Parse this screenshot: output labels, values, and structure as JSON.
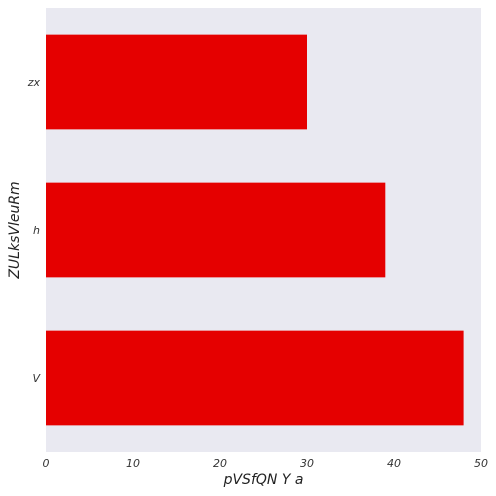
{
  "chart_data": {
    "type": "bar",
    "orientation": "horizontal",
    "categories": [
      "zx",
      "h",
      "V"
    ],
    "values": [
      30,
      39,
      48
    ],
    "xlabel": "pVSfQN Y a",
    "ylabel": "ZULksVleuRm",
    "xlim": [
      0,
      50
    ],
    "xticks": [
      0,
      10,
      20,
      30,
      40,
      50
    ],
    "grid": false,
    "legend": "none",
    "colors": {
      "bar": "#e50000",
      "plot_background": "#e9e9f1"
    }
  }
}
